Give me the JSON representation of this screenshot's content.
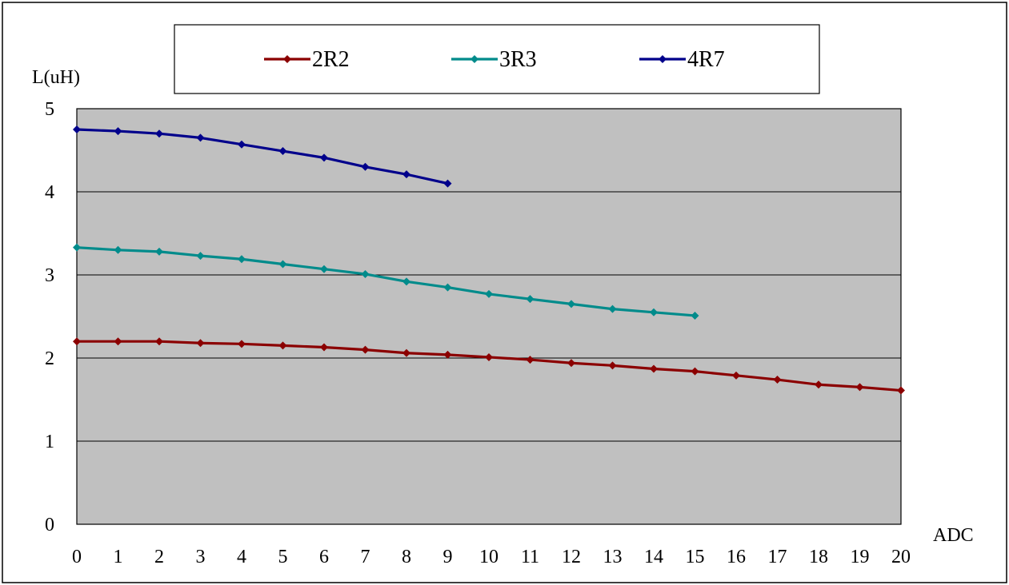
{
  "chart_data": {
    "type": "line",
    "ylabel": "L(uH)",
    "xlabel": "ADC",
    "xlim": [
      0,
      20
    ],
    "ylim": [
      0,
      5
    ],
    "x_ticks": [
      "0",
      "1",
      "2",
      "3",
      "4",
      "5",
      "6",
      "7",
      "8",
      "9",
      "10",
      "11",
      "12",
      "13",
      "14",
      "15",
      "16",
      "17",
      "18",
      "19",
      "20"
    ],
    "y_ticks": [
      "0",
      "1",
      "2",
      "3",
      "4",
      "5"
    ],
    "grid": true,
    "legend_position": "top",
    "plot_background": "#c0c0c0",
    "series": [
      {
        "name": "2R2",
        "color": "#8b0000",
        "x": [
          0,
          1,
          2,
          3,
          4,
          5,
          6,
          7,
          8,
          9,
          10,
          11,
          12,
          13,
          14,
          15,
          16,
          17,
          18,
          19,
          20
        ],
        "values": [
          2.2,
          2.2,
          2.2,
          2.18,
          2.17,
          2.15,
          2.13,
          2.1,
          2.06,
          2.04,
          2.01,
          1.98,
          1.94,
          1.91,
          1.87,
          1.84,
          1.79,
          1.74,
          1.68,
          1.65,
          1.61
        ]
      },
      {
        "name": "3R3",
        "color": "#008b8b",
        "x": [
          0,
          1,
          2,
          3,
          4,
          5,
          6,
          7,
          8,
          9,
          10,
          11,
          12,
          13,
          14,
          15
        ],
        "values": [
          3.33,
          3.3,
          3.28,
          3.23,
          3.19,
          3.13,
          3.07,
          3.01,
          2.92,
          2.85,
          2.77,
          2.71,
          2.65,
          2.59,
          2.55,
          2.51
        ]
      },
      {
        "name": "4R7",
        "color": "#00008b",
        "x": [
          0,
          1,
          2,
          3,
          4,
          5,
          6,
          7,
          8,
          9
        ],
        "values": [
          4.75,
          4.73,
          4.7,
          4.65,
          4.57,
          4.49,
          4.41,
          4.3,
          4.21,
          4.1
        ]
      }
    ]
  }
}
